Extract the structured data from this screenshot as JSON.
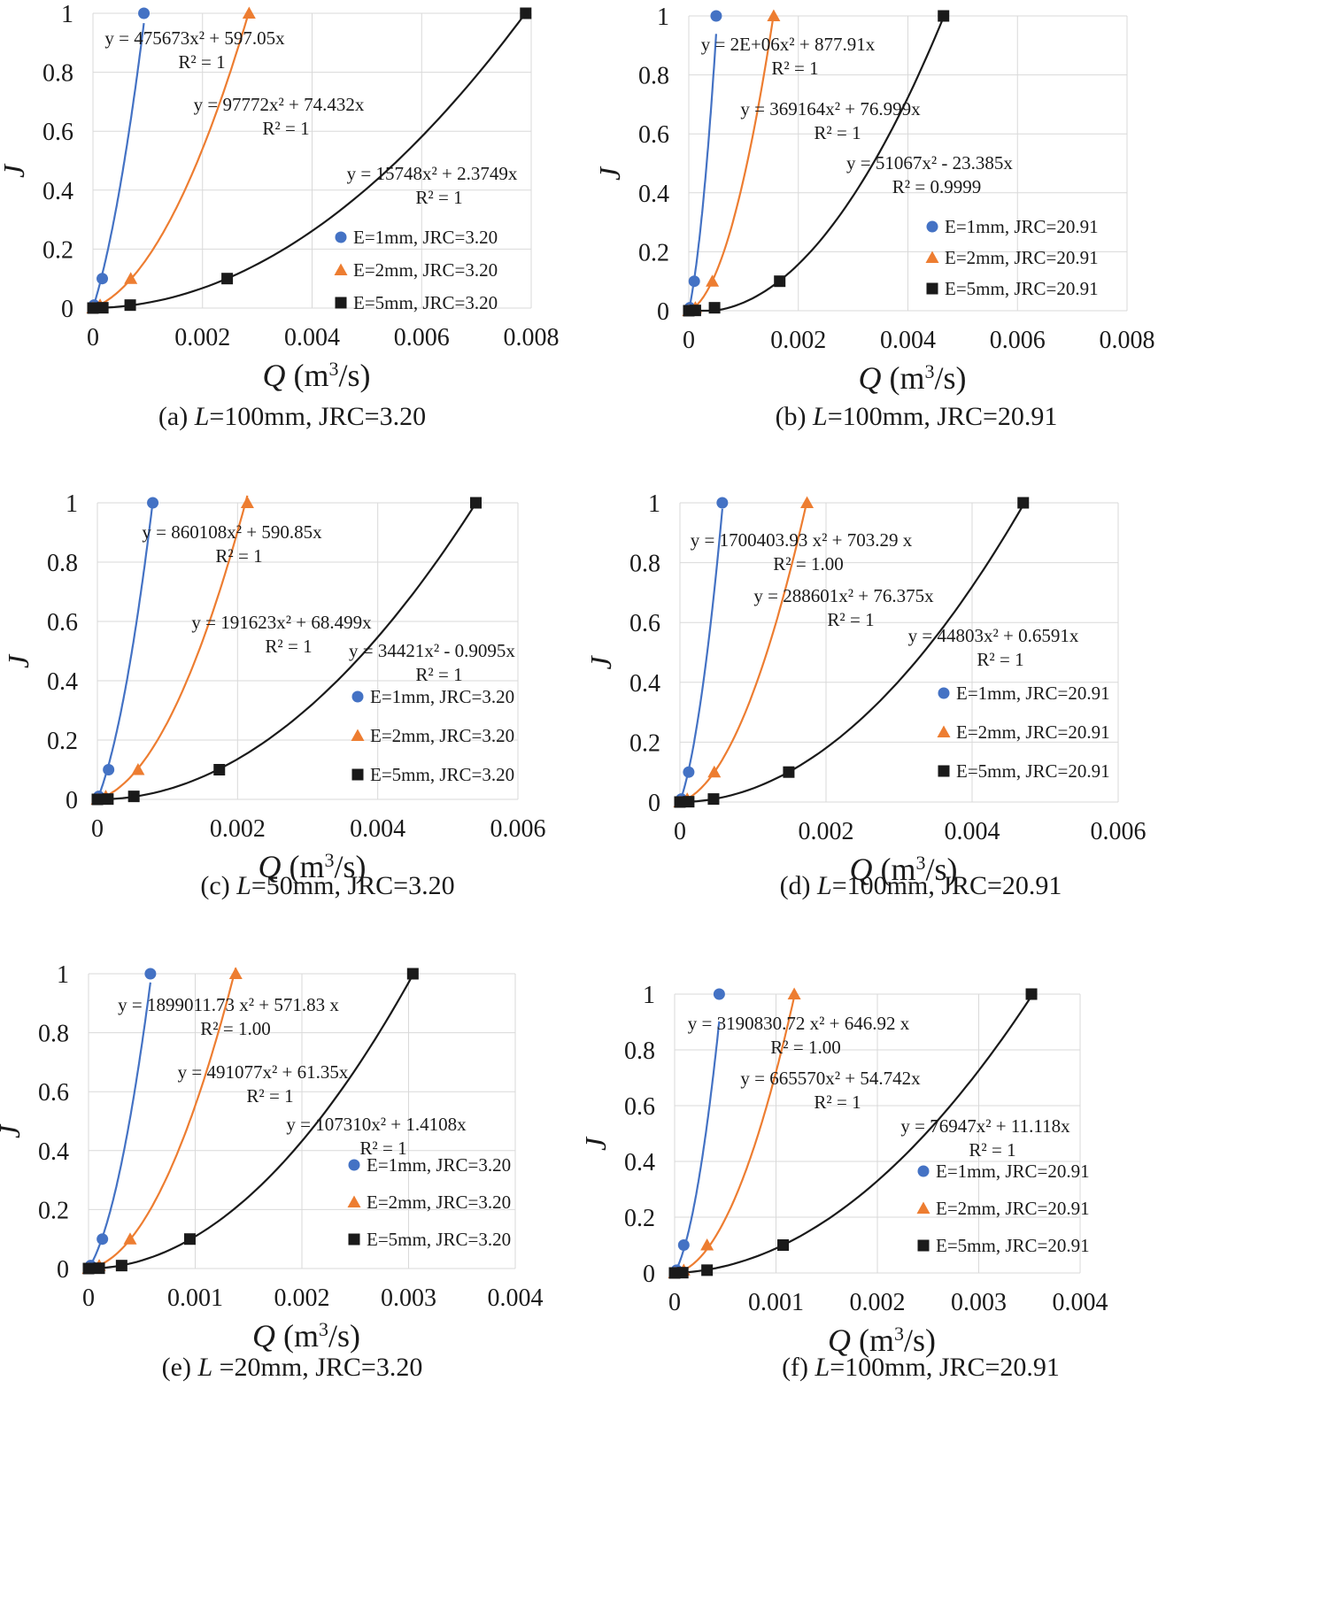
{
  "chart_data": [
    {
      "id": "a",
      "type": "scatter",
      "caption": {
        "prefix": "(a) ",
        "italic": "L",
        "suffix": "=100mm, JRC=3.20"
      },
      "xlabel": {
        "q": "Q",
        "unit": " (m",
        "sup": "3",
        "tail": "/s)"
      },
      "ylabel": "J",
      "xlim": [
        0,
        0.008
      ],
      "xticks": [
        "0",
        "0.002",
        "0.004",
        "0.006",
        "0.008"
      ],
      "ylim": [
        0,
        1
      ],
      "yticks": [
        "0",
        "0.2",
        "0.4",
        "0.6",
        "0.8",
        "1"
      ],
      "series": [
        {
          "name": "E=1mm, JRC=3.20",
          "marker": "circle",
          "color": "#4472c4",
          "x": [
            0,
            2e-05,
            0.00017,
            0.00093
          ],
          "y": [
            0,
            0.01,
            0.1,
            1
          ],
          "fit": {
            "a": 475673,
            "b": 597.05
          },
          "equation": "y = 475673x² + 597.05x",
          "r2": "R² = 1"
        },
        {
          "name": "E=2mm, JRC=3.20",
          "marker": "triangle",
          "color": "#ed7d31",
          "x": [
            0,
            0.00013,
            0.00069,
            0.00285
          ],
          "y": [
            0,
            0.01,
            0.1,
            1
          ],
          "fit": {
            "a": 97772,
            "b": 74.432
          },
          "equation": "y = 97772x² + 74.432x",
          "r2": "R² = 1"
        },
        {
          "name": "E=5mm, JRC=3.20",
          "marker": "square",
          "color": "#1a1a1a",
          "x": [
            0,
            0.00018,
            0.00068,
            0.00245,
            0.0079
          ],
          "y": [
            0,
            0.001,
            0.01,
            0.1,
            1
          ],
          "fit": {
            "a": 15748,
            "b": 2.3749
          },
          "equation": "y = 15748x² + 2.3749x",
          "r2": "R² = 1"
        }
      ]
    },
    {
      "id": "b",
      "type": "scatter",
      "caption": {
        "prefix": "(b) ",
        "italic": "L",
        "suffix": "=100mm, JRC=20.91"
      },
      "xlabel": {
        "q": "Q",
        "unit": " (m",
        "sup": "3",
        "tail": "/s)"
      },
      "ylabel": "J",
      "xlim": [
        0,
        0.008
      ],
      "xticks": [
        "0",
        "0.002",
        "0.004",
        "0.006",
        "0.008"
      ],
      "ylim": [
        0,
        1
      ],
      "yticks": [
        "0",
        "0.2",
        "0.4",
        "0.6",
        "0.8",
        "1"
      ],
      "series": [
        {
          "name": "E=1mm, JRC=20.91",
          "marker": "circle",
          "color": "#4472c4",
          "x": [
            0,
            2e-05,
            0.0001,
            0.0005
          ],
          "y": [
            0,
            0.01,
            0.1,
            1
          ],
          "fit": {
            "a": 2000000,
            "b": 877.91
          },
          "equation": "y = 2E+06x² + 877.91x",
          "r2": "R² = 1"
        },
        {
          "name": "E=2mm, JRC=20.91",
          "marker": "triangle",
          "color": "#ed7d31",
          "x": [
            0,
            0.00012,
            0.00043,
            0.00155
          ],
          "y": [
            0,
            0.01,
            0.1,
            1
          ],
          "fit": {
            "a": 369164,
            "b": 76.999
          },
          "equation": "y = 369164x² + 76.999x",
          "r2": "R² = 1"
        },
        {
          "name": "E=5mm, JRC=20.91",
          "marker": "square",
          "color": "#1a1a1a",
          "x": [
            0,
            0.00012,
            0.00047,
            0.00166,
            0.00465
          ],
          "y": [
            0,
            0.001,
            0.01,
            0.1,
            1
          ],
          "fit": {
            "a": 51067,
            "b": -23.385
          },
          "equation": "y = 51067x² - 23.385x",
          "r2": "R² = 0.9999"
        }
      ]
    },
    {
      "id": "c",
      "type": "scatter",
      "caption": {
        "prefix": "(c) ",
        "italic": "L",
        "suffix": "=50mm, JRC=3.20"
      },
      "xlabel": {
        "q": "Q",
        "unit": " (m",
        "sup": "3",
        "tail": "/s)"
      },
      "ylabel": "J",
      "xlim": [
        0,
        0.006
      ],
      "xticks": [
        "0",
        "0.002",
        "0.004",
        "0.006"
      ],
      "ylim": [
        0,
        1
      ],
      "yticks": [
        "0",
        "0.2",
        "0.4",
        "0.6",
        "0.8",
        "1"
      ],
      "series": [
        {
          "name": "E=1mm, JRC=3.20",
          "marker": "circle",
          "color": "#4472c4",
          "x": [
            0,
            2e-05,
            0.00016,
            0.00079
          ],
          "y": [
            0,
            0.01,
            0.1,
            1
          ],
          "fit": {
            "a": 860108,
            "b": 590.85
          },
          "equation": "y = 860108x² + 590.85x",
          "r2": "R² = 1"
        },
        {
          "name": "E=2mm, JRC=3.20",
          "marker": "triangle",
          "color": "#ed7d31",
          "x": [
            0,
            0.00012,
            0.00058,
            0.00214
          ],
          "y": [
            0,
            0.01,
            0.1,
            1
          ],
          "fit": {
            "a": 191623,
            "b": 68.499
          },
          "equation": "y = 191623x² + 68.499x",
          "r2": "R² = 1"
        },
        {
          "name": "E=5mm, JRC=3.20",
          "marker": "square",
          "color": "#1a1a1a",
          "x": [
            0,
            0.00015,
            0.00052,
            0.00174,
            0.0054
          ],
          "y": [
            0,
            0.001,
            0.01,
            0.1,
            1
          ],
          "fit": {
            "a": 34421,
            "b": -0.9095
          },
          "equation": "y = 34421x² - 0.9095x",
          "r2": "R² = 1"
        }
      ]
    },
    {
      "id": "d",
      "type": "scatter",
      "caption": {
        "prefix": "(d) ",
        "italic": "L",
        "suffix": "=100mm, JRC=20.91"
      },
      "xlabel": {
        "q": "Q",
        "unit": " (m",
        "sup": "3",
        "tail": "/s)"
      },
      "ylabel": "J",
      "xlim": [
        0,
        0.006
      ],
      "xticks": [
        "0",
        "0.002",
        "0.004",
        "0.006"
      ],
      "ylim": [
        0,
        1
      ],
      "yticks": [
        "0",
        "0.2",
        "0.4",
        "0.6",
        "0.8",
        "1"
      ],
      "series": [
        {
          "name": "E=1mm, JRC=20.91",
          "marker": "circle",
          "color": "#4472c4",
          "x": [
            0,
            2e-05,
            0.00012,
            0.00058
          ],
          "y": [
            0,
            0.01,
            0.1,
            1
          ],
          "fit": {
            "a": 1700403.93,
            "b": 703.29
          },
          "equation": "y = 1700403.93 x² + 703.29 x",
          "r2": "R² = 1.00"
        },
        {
          "name": "E=2mm, JRC=20.91",
          "marker": "triangle",
          "color": "#ed7d31",
          "x": [
            0,
            0.0001,
            0.00047,
            0.00174
          ],
          "y": [
            0,
            0.01,
            0.1,
            1
          ],
          "fit": {
            "a": 288601,
            "b": 76.375
          },
          "equation": "y = 288601x² + 76.375x",
          "r2": "R² = 1"
        },
        {
          "name": "E=5mm, JRC=20.91",
          "marker": "square",
          "color": "#1a1a1a",
          "x": [
            0,
            0.00012,
            0.00046,
            0.00149,
            0.0047
          ],
          "y": [
            0,
            0.001,
            0.01,
            0.1,
            1
          ],
          "fit": {
            "a": 44803,
            "b": 0.6591
          },
          "equation": "y = 44803x² + 0.6591x",
          "r2": "R² = 1"
        }
      ]
    },
    {
      "id": "e",
      "type": "scatter",
      "caption": {
        "prefix": "(e) ",
        "italic": "L",
        "suffix": " =20mm, JRC=3.20"
      },
      "xlabel": {
        "q": "Q",
        "unit": " (m",
        "sup": "3",
        "tail": "/s)"
      },
      "ylabel": "J",
      "xlim": [
        0,
        0.004
      ],
      "xticks": [
        "0",
        "0.001",
        "0.002",
        "0.003",
        "0.004"
      ],
      "ylim": [
        0,
        1
      ],
      "yticks": [
        "0",
        "0.2",
        "0.4",
        "0.6",
        "0.8",
        "1"
      ],
      "series": [
        {
          "name": "E=1mm, JRC=3.20",
          "marker": "circle",
          "color": "#4472c4",
          "x": [
            0,
            2e-05,
            0.00013,
            0.00058
          ],
          "y": [
            0,
            0.01,
            0.1,
            1
          ],
          "fit": {
            "a": 1899011.73,
            "b": 571.83
          },
          "equation": "y = 1899011.73 x² + 571.83 x",
          "r2": "R² = 1.00"
        },
        {
          "name": "E=2mm, JRC=3.20",
          "marker": "triangle",
          "color": "#ed7d31",
          "x": [
            0,
            0.0001,
            0.00039,
            0.00138
          ],
          "y": [
            0,
            0.01,
            0.1,
            1
          ],
          "fit": {
            "a": 491077,
            "b": 61.35
          },
          "equation": "y = 491077x² + 61.35x",
          "r2": "R² = 1"
        },
        {
          "name": "E=5mm, JRC=3.20",
          "marker": "square",
          "color": "#1a1a1a",
          "x": [
            0,
            0.0001,
            0.00031,
            0.00095,
            0.00304
          ],
          "y": [
            0,
            0.001,
            0.01,
            0.1,
            1
          ],
          "fit": {
            "a": 107310,
            "b": 1.4108
          },
          "equation": "y = 107310x² + 1.4108x",
          "r2": "R² = 1"
        }
      ]
    },
    {
      "id": "f",
      "type": "scatter",
      "caption": {
        "prefix": "(f) ",
        "italic": "L",
        "suffix": "=100mm, JRC=20.91"
      },
      "xlabel": {
        "q": "Q",
        "unit": " (m",
        "sup": "3",
        "tail": "/s)"
      },
      "ylabel": "J",
      "xlim": [
        0,
        0.004
      ],
      "xticks": [
        "0",
        "0.001",
        "0.002",
        "0.003",
        "0.004"
      ],
      "ylim": [
        0,
        1
      ],
      "yticks": [
        "0",
        "0.2",
        "0.4",
        "0.6",
        "0.8",
        "1"
      ],
      "series": [
        {
          "name": "E=1mm, JRC=20.91",
          "marker": "circle",
          "color": "#4472c4",
          "x": [
            0,
            2e-05,
            9e-05,
            0.00044
          ],
          "y": [
            0,
            0.01,
            0.1,
            1
          ],
          "fit": {
            "a": 3190830.72,
            "b": 646.92
          },
          "equation": "y = 3190830.72 x² + 646.92 x",
          "r2": "R² = 1.00"
        },
        {
          "name": "E=2mm, JRC=20.91",
          "marker": "triangle",
          "color": "#ed7d31",
          "x": [
            0,
            9e-05,
            0.00032,
            0.00118
          ],
          "y": [
            0,
            0.01,
            0.1,
            1
          ],
          "fit": {
            "a": 665570,
            "b": 54.742
          },
          "equation": "y = 665570x² + 54.742x",
          "r2": "R² = 1"
        },
        {
          "name": "E=5mm, JRC=20.91",
          "marker": "square",
          "color": "#1a1a1a",
          "x": [
            0,
            8e-05,
            0.00032,
            0.00107,
            0.00352
          ],
          "y": [
            0,
            0.001,
            0.01,
            0.1,
            1
          ],
          "fit": {
            "a": 76947,
            "b": 11.118
          },
          "equation": "y = 76947x² + 11.118x",
          "r2": "R² = 1"
        }
      ]
    }
  ]
}
